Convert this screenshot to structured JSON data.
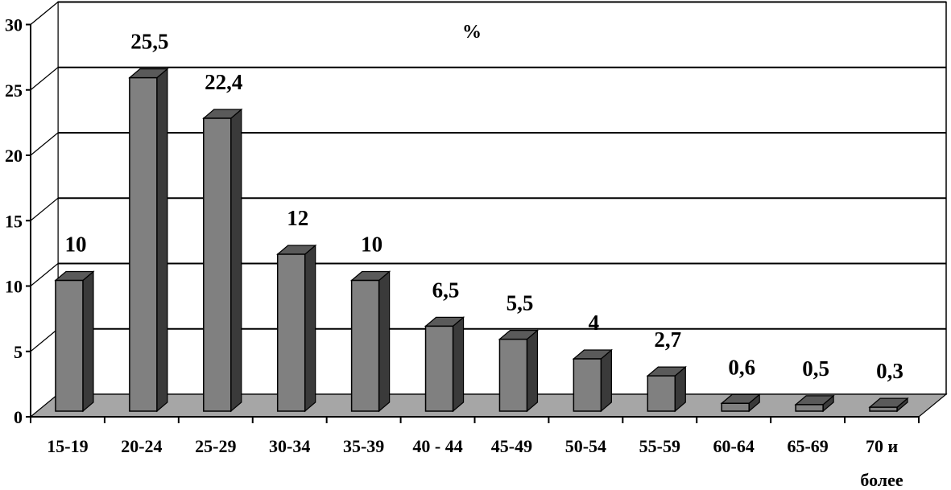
{
  "chart_data": {
    "type": "bar",
    "unit_label": "%",
    "categories": [
      "15-19",
      "20-24",
      "25-29",
      "30-34",
      "35-39",
      "40 - 44",
      "45-49",
      "50-54",
      "55-59",
      "60-64",
      "65-69",
      "70 и более"
    ],
    "category_lines": [
      [
        "15-19"
      ],
      [
        "20-24"
      ],
      [
        "25-29"
      ],
      [
        "30-34"
      ],
      [
        "35-39"
      ],
      [
        "40 - 44"
      ],
      [
        "45-49"
      ],
      [
        "50-54"
      ],
      [
        "55-59"
      ],
      [
        "60-64"
      ],
      [
        "65-69"
      ],
      [
        "70 и",
        "более"
      ]
    ],
    "values": [
      10,
      25.5,
      22.4,
      12,
      10,
      6.5,
      5.5,
      4,
      2.7,
      0.6,
      0.5,
      0.3
    ],
    "value_labels": [
      "10",
      "25,5",
      "22,4",
      "12",
      "10",
      "6,5",
      "5,5",
      "4",
      "2,7",
      "0,6",
      "0,5",
      "0,3"
    ],
    "yticks": [
      "0",
      "5",
      "10",
      "15",
      "20",
      "25",
      "30"
    ],
    "ylim": [
      0,
      30
    ],
    "grid": true,
    "style": "3d-column",
    "colors": {
      "bar_front": "#808080",
      "bar_top": "#5a5a5a",
      "bar_side": "#3a3a3a",
      "floor": "#a6a6a6",
      "grid": "#000000",
      "background": "#ffffff"
    }
  }
}
